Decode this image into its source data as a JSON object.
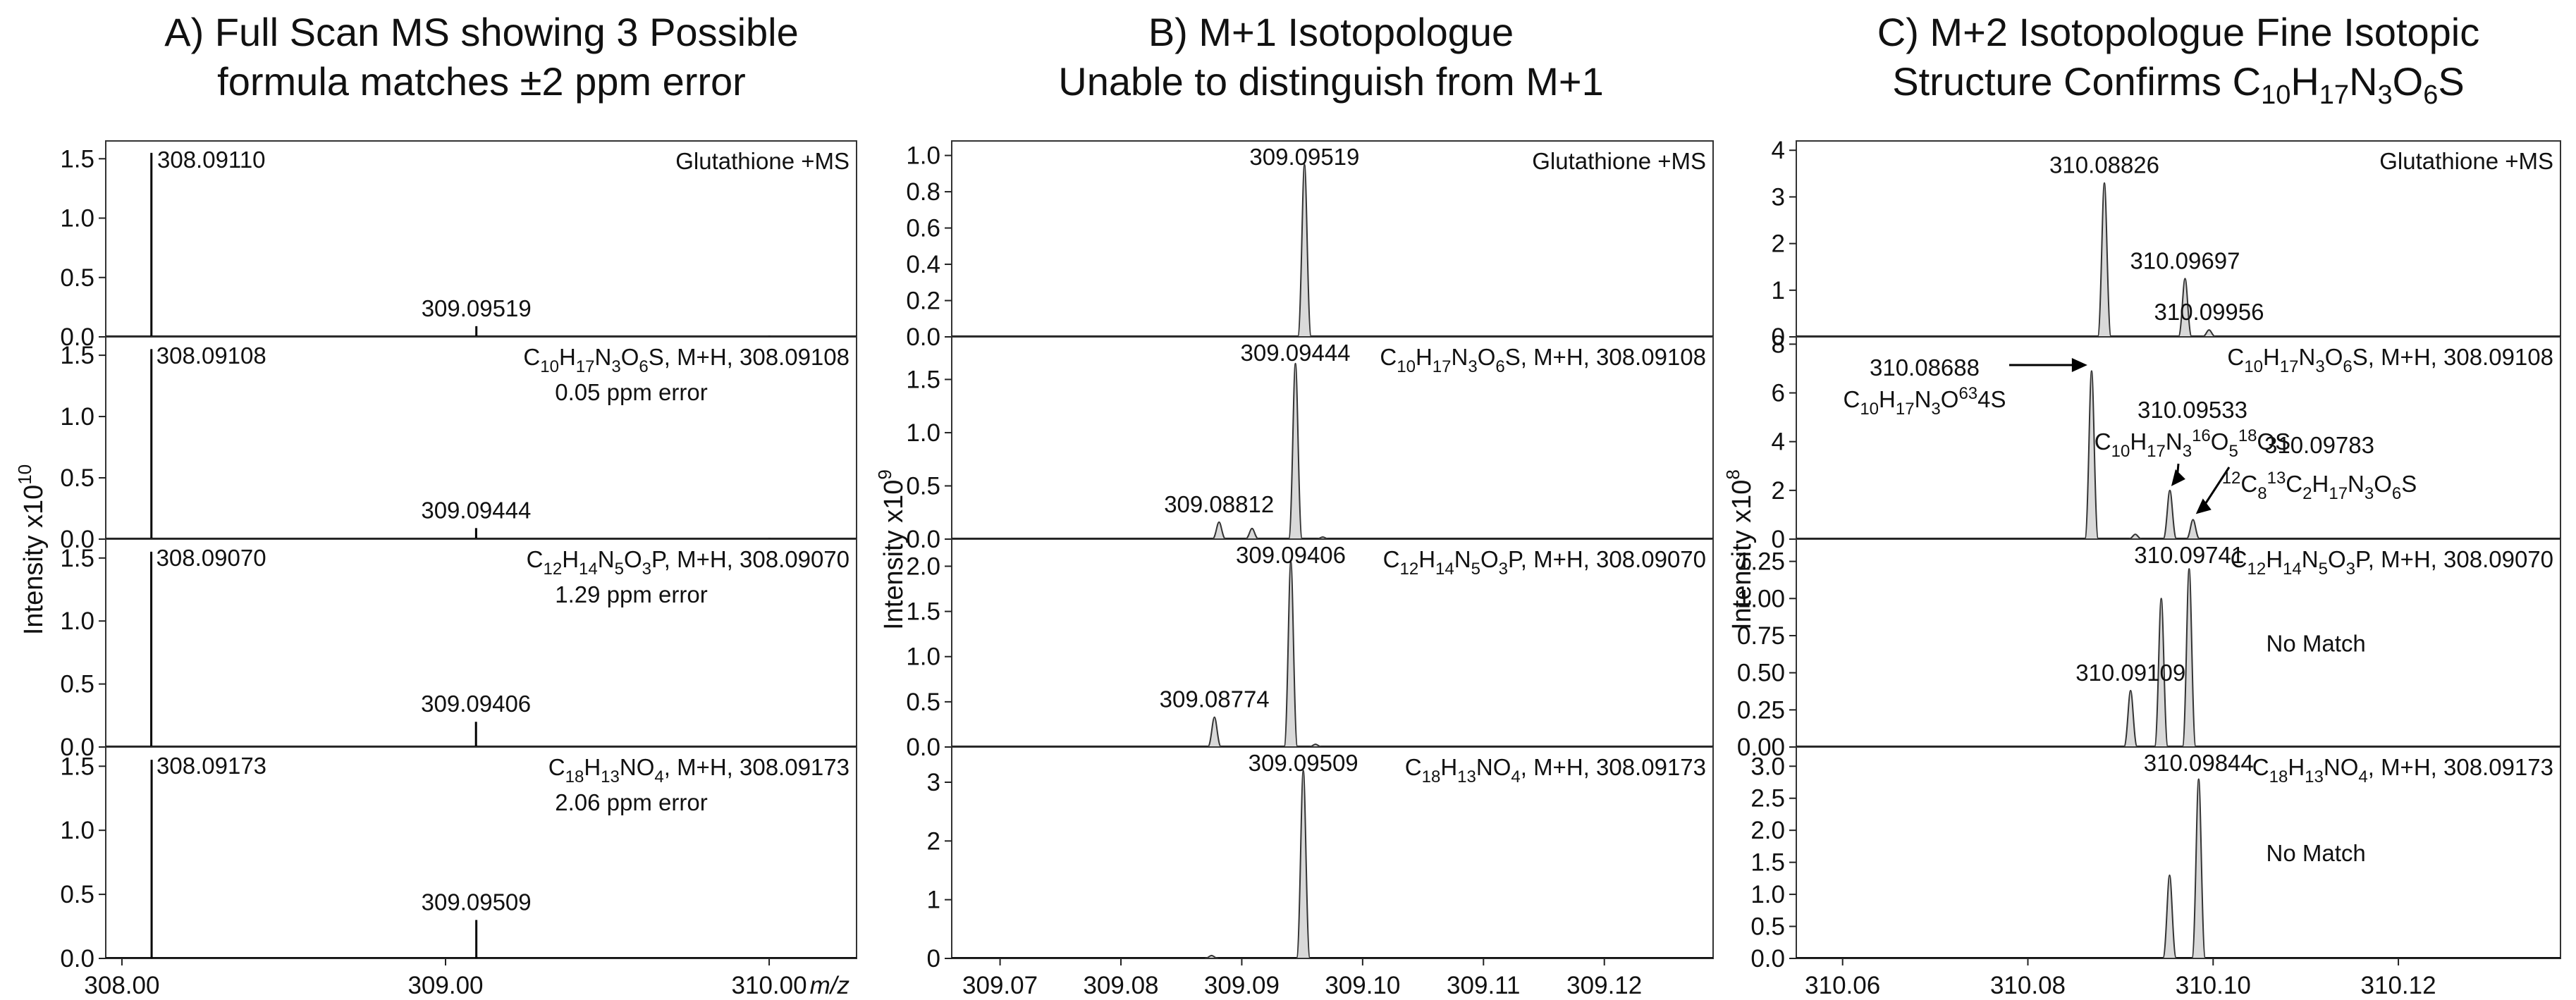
{
  "columns": [
    {
      "title": [
        "A) Full Scan MS showing 3 Possible",
        "formula matches ±2 ppm error"
      ],
      "ylabel": "Intensity x10",
      "ylabel_sup": "10",
      "xlabel": "m/z",
      "xlim": [
        307.95,
        310.27
      ],
      "xticks": [
        "308.00",
        "309.00",
        "310.00"
      ],
      "xtick_values": [
        308.0,
        309.0,
        310.0
      ],
      "peak_width": 0.0014
    },
    {
      "title": [
        "B) M+1 Isotopologue",
        "Unable to distinguish from M+1"
      ],
      "ylabel": "Intensity x10",
      "ylabel_sup": "9",
      "xlabel": "",
      "xlim": [
        309.066,
        309.129
      ],
      "xticks": [
        "309.07",
        "309.08",
        "309.09",
        "309.10",
        "309.11",
        "309.12"
      ],
      "xtick_values": [
        309.07,
        309.08,
        309.09,
        309.1,
        309.11,
        309.12
      ],
      "peak_width": 0.00028
    },
    {
      "title": [
        "C) M+2 Isotopologue Fine Isotopic",
        "Structure Confirms C10H17N3O6S"
      ],
      "ylabel": "Intensity x10",
      "ylabel_sup": "8",
      "xlabel": "",
      "xlim": [
        310.055,
        310.1375
      ],
      "xticks": [
        "310.06",
        "310.08",
        "310.10",
        "310.12"
      ],
      "xtick_values": [
        310.06,
        310.08,
        310.1,
        310.12
      ],
      "peak_width": 0.00036
    }
  ],
  "chart_data": [
    {
      "type": "line",
      "panel": "A1",
      "column": 0,
      "row": 0,
      "ylim": [
        0,
        1.65
      ],
      "yticks": [
        "0.0",
        "0.5",
        "1.0",
        "1.5"
      ],
      "ytick_values": [
        0,
        0.5,
        1.0,
        1.5
      ],
      "legend": "Glutathione +MS",
      "series": [
        {
          "x": [
            308.0911,
            309.09519,
            310.0
          ],
          "y": [
            1.55,
            0.09,
            0.01
          ]
        }
      ],
      "labels": [
        {
          "text": "308.09110",
          "x": 308.0911,
          "y": 1.55
        },
        {
          "text": "309.09519",
          "x": 309.09519,
          "y": 0.09
        }
      ]
    },
    {
      "type": "line",
      "panel": "A2",
      "column": 0,
      "row": 1,
      "ylim": [
        0,
        1.65
      ],
      "yticks": [
        "0.0",
        "0.5",
        "1.0",
        "1.5"
      ],
      "ytick_values": [
        0,
        0.5,
        1.0,
        1.5
      ],
      "legend": "C10H17N3O6S, M+H, 308.09108",
      "error": "0.05 ppm error",
      "series": [
        {
          "x": [
            308.09108,
            309.09444,
            310.0
          ],
          "y": [
            1.55,
            0.09,
            0.01
          ]
        }
      ],
      "labels": [
        {
          "text": "308.09108",
          "x": 308.09108,
          "y": 1.55
        },
        {
          "text": "309.09444",
          "x": 309.09444,
          "y": 0.09
        }
      ]
    },
    {
      "type": "line",
      "panel": "A3",
      "column": 0,
      "row": 2,
      "ylim": [
        0,
        1.65
      ],
      "yticks": [
        "0.0",
        "0.5",
        "1.0",
        "1.5"
      ],
      "ytick_values": [
        0,
        0.5,
        1.0,
        1.5
      ],
      "legend": "C12H14N5O3P, M+H, 308.09070",
      "error": "1.29 ppm error",
      "series": [
        {
          "x": [
            308.0907,
            309.09406
          ],
          "y": [
            1.55,
            0.2
          ]
        }
      ],
      "labels": [
        {
          "text": "308.09070",
          "x": 308.0907,
          "y": 1.55
        },
        {
          "text": "309.09406",
          "x": 309.09406,
          "y": 0.2
        }
      ]
    },
    {
      "type": "line",
      "panel": "A4",
      "column": 0,
      "row": 3,
      "ylim": [
        0,
        1.65
      ],
      "yticks": [
        "0.0",
        "0.5",
        "1.0",
        "1.5"
      ],
      "ytick_values": [
        0,
        0.5,
        1.0,
        1.5
      ],
      "legend": "C18H13NO4, M+H, 308.09173",
      "error": "2.06 ppm error",
      "series": [
        {
          "x": [
            308.09173,
            309.09509
          ],
          "y": [
            1.55,
            0.3
          ]
        }
      ],
      "labels": [
        {
          "text": "308.09173",
          "x": 308.09173,
          "y": 1.55
        },
        {
          "text": "309.09509",
          "x": 309.09509,
          "y": 0.3
        }
      ]
    },
    {
      "type": "area",
      "panel": "B1",
      "column": 1,
      "row": 0,
      "ylim": [
        0,
        1.08
      ],
      "yticks": [
        "0.0",
        "0.2",
        "0.4",
        "0.6",
        "0.8",
        "1.0"
      ],
      "ytick_values": [
        0,
        0.2,
        0.4,
        0.6,
        0.8,
        1.0
      ],
      "legend": "Glutathione +MS",
      "series": [
        {
          "x": [
            309.09519
          ],
          "y": [
            0.95
          ]
        }
      ],
      "labels": [
        {
          "text": "309.09519",
          "x": 309.09519,
          "y": 0.95
        }
      ]
    },
    {
      "type": "area",
      "panel": "B2",
      "column": 1,
      "row": 1,
      "ylim": [
        0,
        1.9
      ],
      "yticks": [
        "0.0",
        "0.5",
        "1.0",
        "1.5"
      ],
      "ytick_values": [
        0,
        0.5,
        1.0,
        1.5
      ],
      "legend": "C10H17N3O6S, M+H, 308.09108",
      "series": [
        {
          "x": [
            309.08812,
            309.09085,
            309.09444,
            309.0967
          ],
          "y": [
            0.16,
            0.1,
            1.65,
            0.02
          ]
        }
      ],
      "labels": [
        {
          "text": "309.09444",
          "x": 309.09444,
          "y": 1.65
        },
        {
          "text": "309.08812",
          "x": 309.08812,
          "y": 0.16
        }
      ]
    },
    {
      "type": "area",
      "panel": "B3",
      "column": 1,
      "row": 2,
      "ylim": [
        0,
        2.3
      ],
      "yticks": [
        "0.0",
        "0.5",
        "1.0",
        "1.5",
        "2.0"
      ],
      "ytick_values": [
        0,
        0.5,
        1.0,
        1.5,
        2.0
      ],
      "legend": "C12H14N5O3P, M+H, 308.09070",
      "series": [
        {
          "x": [
            309.08774,
            309.09406,
            309.0961
          ],
          "y": [
            0.33,
            2.05,
            0.03
          ]
        }
      ],
      "labels": [
        {
          "text": "309.09406",
          "x": 309.09406,
          "y": 2.05
        },
        {
          "text": "309.08774",
          "x": 309.08774,
          "y": 0.33
        }
      ]
    },
    {
      "type": "area",
      "panel": "B4",
      "column": 1,
      "row": 3,
      "ylim": [
        0,
        3.6
      ],
      "yticks": [
        "0",
        "1",
        "2",
        "3"
      ],
      "ytick_values": [
        0,
        1,
        2,
        3
      ],
      "legend": "C18H13NO4, M+H, 308.09173",
      "series": [
        {
          "x": [
            309.0875,
            309.09509
          ],
          "y": [
            0.05,
            3.2
          ]
        }
      ],
      "labels": [
        {
          "text": "309.09509",
          "x": 309.09509,
          "y": 3.2
        }
      ]
    },
    {
      "type": "area",
      "panel": "C1",
      "column": 2,
      "row": 0,
      "ylim": [
        0,
        4.2
      ],
      "yticks": [
        "0",
        "1",
        "2",
        "3",
        "4"
      ],
      "ytick_values": [
        0,
        1,
        2,
        3,
        4
      ],
      "legend": "Glutathione +MS",
      "series": [
        {
          "x": [
            310.08826,
            310.09697,
            310.09956
          ],
          "y": [
            3.3,
            1.25,
            0.15
          ]
        }
      ],
      "labels": [
        {
          "text": "310.08826",
          "x": 310.08826,
          "y": 3.3
        },
        {
          "text": "310.09697",
          "x": 310.09697,
          "y": 1.25
        },
        {
          "text": "310.09956",
          "x": 310.09956,
          "y": 0.15
        }
      ]
    },
    {
      "type": "area",
      "panel": "C2",
      "column": 2,
      "row": 1,
      "ylim": [
        0,
        8.3
      ],
      "yticks": [
        "0",
        "2",
        "4",
        "6",
        "8"
      ],
      "ytick_values": [
        0,
        2,
        4,
        6,
        8
      ],
      "legend": "C10H17N3O6S, M+H, 308.09108",
      "series": [
        {
          "x": [
            310.08688,
            310.0916,
            310.09533,
            310.09783
          ],
          "y": [
            6.9,
            0.2,
            2.0,
            0.8
          ]
        }
      ],
      "labels": [
        {
          "text": "310.08688",
          "formula": "C10H17N3O634S"
        },
        {
          "text": "310.09533",
          "formula": "C10H17N316O518OS"
        },
        {
          "text": "310.09783",
          "formula": "12C813C2H17N3O6S"
        }
      ]
    },
    {
      "type": "area",
      "panel": "C3",
      "column": 2,
      "row": 2,
      "ylim": [
        0,
        1.4
      ],
      "yticks": [
        "0.00",
        "0.25",
        "0.50",
        "0.75",
        "1.00",
        "1.25"
      ],
      "ytick_values": [
        0,
        0.25,
        0.5,
        0.75,
        1.0,
        1.25
      ],
      "legend": "C12H14N5O3P, M+H, 308.09070",
      "note": "No Match",
      "series": [
        {
          "x": [
            310.09109,
            310.0944,
            310.09741
          ],
          "y": [
            0.38,
            1.0,
            1.2
          ]
        }
      ],
      "labels": [
        {
          "text": "310.09741",
          "x": 310.09741,
          "y": 1.2
        },
        {
          "text": "310.09109",
          "x": 310.09109,
          "y": 0.38
        }
      ]
    },
    {
      "type": "area",
      "panel": "C4",
      "column": 2,
      "row": 3,
      "ylim": [
        0,
        3.3
      ],
      "yticks": [
        "0.0",
        "0.5",
        "1.0",
        "1.5",
        "2.0",
        "2.5",
        "3.0"
      ],
      "ytick_values": [
        0,
        0.5,
        1.0,
        1.5,
        2.0,
        2.5,
        3.0
      ],
      "legend": "C18H13NO4, M+H, 308.09173",
      "note": "No Match",
      "series": [
        {
          "x": [
            310.0953,
            310.09844
          ],
          "y": [
            1.3,
            2.8
          ]
        }
      ],
      "labels": [
        {
          "text": "310.09844",
          "x": 310.09844,
          "y": 2.8
        }
      ]
    }
  ]
}
